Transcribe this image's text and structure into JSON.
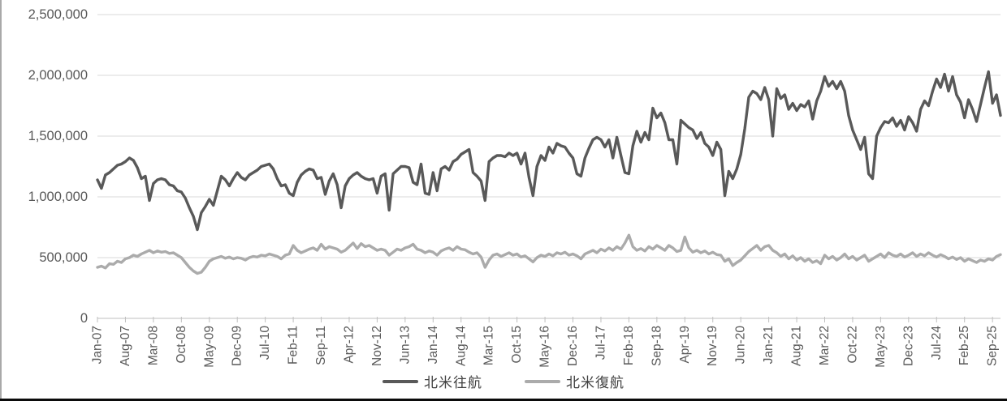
{
  "chart_data": {
    "type": "line",
    "title": "",
    "xlabel": "",
    "ylabel": "",
    "grid": "horizontal",
    "legend_position": "bottom-center",
    "ylim": [
      0,
      2500000
    ],
    "y_tick_step": 500000,
    "y_tick_labels": [
      "0",
      "500,000",
      "1,000,000",
      "1,500,000",
      "2,000,000",
      "2,500,000"
    ],
    "x_start_month": "Jan-07",
    "x_end_month": "Nov-25",
    "x_tick_interval_months": 7,
    "x_tick_labels": [
      "Jan-07",
      "Aug-07",
      "Mar-08",
      "Oct-08",
      "May-09",
      "Dec-09",
      "Jul-10",
      "Feb-11",
      "Sep-11",
      "Apr-12",
      "Nov-12",
      "Jun-13",
      "Jan-14",
      "Aug-14",
      "Mar-15",
      "Oct-15",
      "May-16",
      "Dec-16",
      "Jul-17",
      "Feb-18",
      "Sep-18",
      "Apr-19",
      "Nov-19",
      "Jun-20",
      "Jan-21",
      "Aug-21",
      "Mar-22",
      "Oct-22",
      "May-23",
      "Dec-23",
      "Jul-24",
      "Feb-25",
      "Sep-25"
    ],
    "colors": {
      "outbound": "#595959",
      "return": "#ababab",
      "gridline": "#d9d9d9",
      "axis": "#bfbfbf",
      "tick_text": "#595959"
    },
    "series": [
      {
        "name": "北米往航",
        "color": "#595959",
        "values": [
          1140000,
          1070000,
          1180000,
          1200000,
          1230000,
          1260000,
          1270000,
          1290000,
          1320000,
          1300000,
          1240000,
          1150000,
          1170000,
          970000,
          1110000,
          1140000,
          1150000,
          1140000,
          1100000,
          1090000,
          1050000,
          1040000,
          990000,
          910000,
          840000,
          730000,
          870000,
          920000,
          980000,
          930000,
          1050000,
          1170000,
          1140000,
          1090000,
          1150000,
          1200000,
          1160000,
          1140000,
          1180000,
          1200000,
          1220000,
          1250000,
          1260000,
          1270000,
          1230000,
          1150000,
          1090000,
          1100000,
          1030000,
          1010000,
          1120000,
          1180000,
          1210000,
          1230000,
          1220000,
          1150000,
          1160000,
          1020000,
          1130000,
          1190000,
          1100000,
          910000,
          1090000,
          1150000,
          1180000,
          1200000,
          1170000,
          1150000,
          1140000,
          1150000,
          1030000,
          1170000,
          1190000,
          890000,
          1190000,
          1220000,
          1250000,
          1250000,
          1240000,
          1120000,
          1100000,
          1270000,
          1030000,
          1020000,
          1200000,
          1050000,
          1230000,
          1250000,
          1220000,
          1290000,
          1310000,
          1350000,
          1370000,
          1390000,
          1200000,
          1170000,
          1130000,
          970000,
          1290000,
          1320000,
          1340000,
          1340000,
          1330000,
          1360000,
          1340000,
          1360000,
          1270000,
          1360000,
          1160000,
          1010000,
          1250000,
          1340000,
          1300000,
          1410000,
          1360000,
          1440000,
          1420000,
          1410000,
          1360000,
          1320000,
          1190000,
          1170000,
          1320000,
          1400000,
          1470000,
          1490000,
          1470000,
          1410000,
          1470000,
          1320000,
          1490000,
          1340000,
          1200000,
          1190000,
          1420000,
          1540000,
          1450000,
          1530000,
          1470000,
          1730000,
          1650000,
          1690000,
          1610000,
          1470000,
          1470000,
          1270000,
          1630000,
          1600000,
          1570000,
          1550000,
          1480000,
          1530000,
          1440000,
          1410000,
          1340000,
          1450000,
          1390000,
          1010000,
          1210000,
          1150000,
          1230000,
          1350000,
          1560000,
          1820000,
          1870000,
          1850000,
          1800000,
          1900000,
          1800000,
          1500000,
          1890000,
          1810000,
          1840000,
          1720000,
          1770000,
          1710000,
          1760000,
          1740000,
          1790000,
          1640000,
          1790000,
          1870000,
          1990000,
          1910000,
          1950000,
          1890000,
          1950000,
          1870000,
          1670000,
          1550000,
          1470000,
          1390000,
          1490000,
          1190000,
          1150000,
          1500000,
          1570000,
          1620000,
          1610000,
          1650000,
          1580000,
          1630000,
          1550000,
          1660000,
          1610000,
          1540000,
          1720000,
          1790000,
          1750000,
          1870000,
          1970000,
          1900000,
          2010000,
          1870000,
          1990000,
          1840000,
          1780000,
          1650000,
          1800000,
          1720000,
          1620000,
          1760000,
          1900000,
          2030000,
          1770000,
          1840000,
          1670000
        ]
      },
      {
        "name": "北米復航",
        "color": "#ababab",
        "values": [
          420000,
          430000,
          415000,
          450000,
          445000,
          470000,
          460000,
          490000,
          500000,
          520000,
          510000,
          530000,
          545000,
          560000,
          540000,
          555000,
          545000,
          550000,
          535000,
          540000,
          520000,
          500000,
          460000,
          420000,
          390000,
          370000,
          380000,
          420000,
          470000,
          490000,
          500000,
          510000,
          495000,
          505000,
          490000,
          500000,
          495000,
          480000,
          500000,
          510000,
          505000,
          520000,
          515000,
          530000,
          520000,
          510000,
          490000,
          520000,
          530000,
          600000,
          560000,
          540000,
          555000,
          570000,
          580000,
          560000,
          610000,
          570000,
          590000,
          580000,
          570000,
          545000,
          560000,
          590000,
          620000,
          575000,
          615000,
          590000,
          600000,
          580000,
          560000,
          570000,
          560000,
          520000,
          545000,
          570000,
          560000,
          580000,
          590000,
          610000,
          570000,
          560000,
          540000,
          555000,
          545000,
          520000,
          555000,
          570000,
          580000,
          560000,
          590000,
          570000,
          565000,
          545000,
          530000,
          540000,
          505000,
          420000,
          480000,
          520000,
          530000,
          510000,
          525000,
          540000,
          520000,
          530000,
          505000,
          515000,
          490000,
          465000,
          500000,
          520000,
          510000,
          530000,
          515000,
          540000,
          530000,
          545000,
          520000,
          530000,
          515000,
          490000,
          530000,
          545000,
          560000,
          540000,
          570000,
          555000,
          580000,
          560000,
          590000,
          570000,
          620000,
          685000,
          590000,
          560000,
          575000,
          555000,
          590000,
          570000,
          600000,
          580000,
          560000,
          600000,
          580000,
          550000,
          560000,
          670000,
          580000,
          545000,
          560000,
          540000,
          555000,
          530000,
          545000,
          525000,
          520000,
          470000,
          490000,
          435000,
          460000,
          480000,
          515000,
          550000,
          575000,
          600000,
          560000,
          590000,
          600000,
          560000,
          540000,
          510000,
          530000,
          490000,
          515000,
          480000,
          500000,
          470000,
          490000,
          460000,
          475000,
          450000,
          520000,
          490000,
          510000,
          480000,
          500000,
          530000,
          490000,
          510000,
          480000,
          500000,
          520000,
          470000,
          490000,
          510000,
          530000,
          500000,
          540000,
          520000,
          510000,
          530000,
          505000,
          520000,
          540000,
          510000,
          530000,
          515000,
          540000,
          520000,
          505000,
          525000,
          510000,
          490000,
          505000,
          485000,
          500000,
          470000,
          490000,
          475000,
          460000,
          480000,
          470000,
          490000,
          480000,
          510000,
          525000
        ]
      }
    ]
  }
}
